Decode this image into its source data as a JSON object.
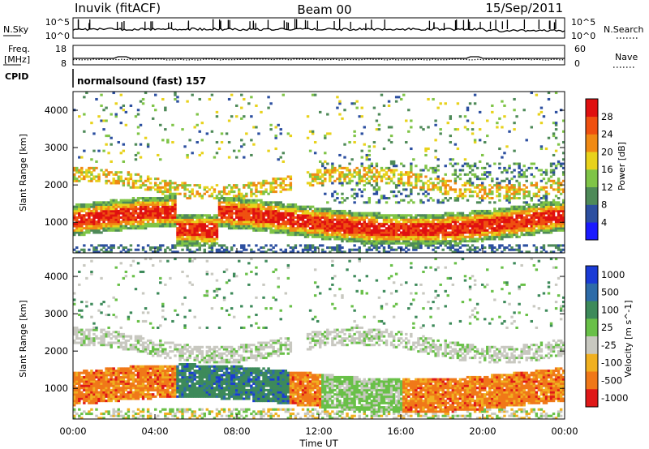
{
  "header": {
    "station": "Inuvik (fitACF)",
    "beam": "Beam 00",
    "date": "15/Sep/2011"
  },
  "summary_panels": {
    "nsky_label": "N.Sky",
    "nsky_ticks": [
      "10^5",
      "10^0"
    ],
    "nsearch_label": "N.Search",
    "nsearch_ticks": [
      "10^5",
      "10^0"
    ],
    "freq_label_1": "Freq.",
    "freq_label_2": "[MHz]",
    "freq_ticks": [
      "18",
      "8"
    ],
    "nave_label": "Nave",
    "nave_ticks": [
      "60",
      "0"
    ],
    "cpid_label": "CPID",
    "cpid_value": "normalsound (fast) 157"
  },
  "chart_data": [
    {
      "type": "heatmap",
      "panel": "power",
      "ylabel": "Slant Range [km]",
      "ylim": [
        180,
        4500
      ],
      "yticks": [
        1000,
        2000,
        3000,
        4000
      ],
      "xlim": [
        0,
        24
      ],
      "colorbar_label": "Power [dB]",
      "colorbar_ticks": [
        4,
        8,
        12,
        16,
        20,
        24,
        28
      ],
      "colorbar_colors": [
        "#1a1aff",
        "#2c4fa0",
        "#4e8a58",
        "#7fc447",
        "#e8d21b",
        "#f08a14",
        "#ef5010",
        "#e01010"
      ],
      "features": [
        {
          "x": [
            0,
            10.5
          ],
          "y": [
            600,
            1600
          ],
          "level": "high"
        },
        {
          "x": [
            10.8,
            24
          ],
          "y": [
            700,
            1500
          ],
          "level": "high"
        },
        {
          "x": [
            0,
            11
          ],
          "y": [
            1800,
            2600
          ],
          "level": "mid"
        },
        {
          "x": [
            12,
            24
          ],
          "y": [
            1700,
            2500
          ],
          "level": "mid"
        },
        {
          "x": [
            1,
            23
          ],
          "y": [
            2600,
            4300
          ],
          "level": "sparse"
        }
      ]
    },
    {
      "type": "heatmap",
      "panel": "velocity",
      "ylabel": "Slant Range [km]",
      "xlabel": "Time UT",
      "ylim": [
        180,
        4500
      ],
      "yticks": [
        1000,
        2000,
        3000,
        4000
      ],
      "xlim": [
        0,
        24
      ],
      "xticks": [
        "00:00",
        "04:00",
        "08:00",
        "12:00",
        "16:00",
        "20:00",
        "00:00"
      ],
      "colorbar_label": "Velocity [m s^-1]",
      "colorbar_ticks": [
        1000,
        500,
        100,
        25,
        -25,
        -100,
        -500,
        -1000
      ],
      "colorbar_colors": [
        "#1a3bd6",
        "#2d6ba8",
        "#3d8a5a",
        "#69c048",
        "#c8c8c0",
        "#f0b020",
        "#f07818",
        "#e01818"
      ],
      "features": [
        {
          "x": [
            0,
            10.5
          ],
          "y": [
            600,
            1400
          ],
          "level": "negative"
        },
        {
          "x": [
            5,
            10.5
          ],
          "y": [
            700,
            1700
          ],
          "level": "positive"
        },
        {
          "x": [
            0,
            24
          ],
          "y": [
            1800,
            2600
          ],
          "level": "near-zero"
        },
        {
          "x": [
            12,
            24
          ],
          "y": [
            500,
            1300
          ],
          "level": "negative"
        }
      ]
    }
  ]
}
